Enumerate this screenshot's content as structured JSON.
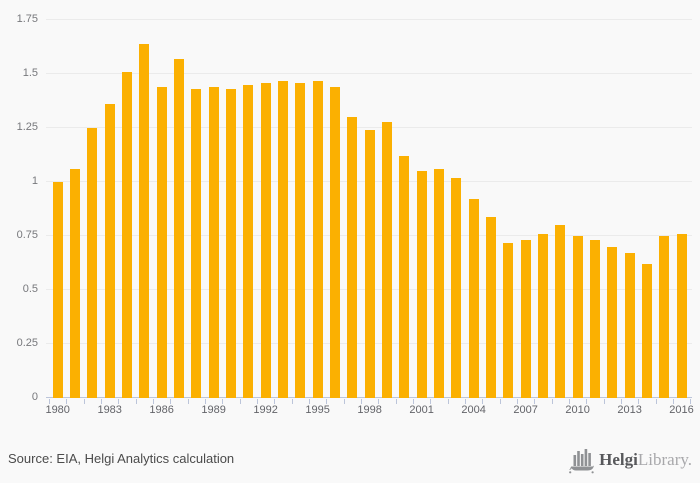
{
  "chart_data": {
    "type": "bar",
    "title": "",
    "xlabel": "",
    "ylabel": "",
    "x": [
      1980,
      1981,
      1982,
      1983,
      1984,
      1985,
      1986,
      1987,
      1988,
      1989,
      1990,
      1991,
      1992,
      1993,
      1994,
      1995,
      1996,
      1997,
      1998,
      1999,
      2000,
      2001,
      2002,
      2003,
      2004,
      2005,
      2006,
      2007,
      2008,
      2009,
      2010,
      2011,
      2012,
      2013,
      2014,
      2015,
      2016
    ],
    "values": [
      1.0,
      1.06,
      1.25,
      1.36,
      1.51,
      1.64,
      1.44,
      1.57,
      1.43,
      1.44,
      1.43,
      1.45,
      1.46,
      1.47,
      1.46,
      1.47,
      1.44,
      1.3,
      1.24,
      1.28,
      1.12,
      1.05,
      1.06,
      1.02,
      0.92,
      0.84,
      0.72,
      0.73,
      0.76,
      0.8,
      0.75,
      0.73,
      0.7,
      0.67,
      0.62,
      0.75,
      0.76
    ],
    "ylim": [
      0,
      1.75
    ],
    "yticks": [
      0,
      0.25,
      0.5,
      0.75,
      1,
      1.25,
      1.5,
      1.75
    ],
    "ytick_labels": [
      "0",
      "0.25",
      "0.5",
      "0.75",
      "1",
      "1.25",
      "1.5",
      "1.75"
    ],
    "xtick_labels": [
      "1980",
      "1983",
      "1986",
      "1989",
      "1992",
      "1995",
      "1998",
      "2001",
      "2004",
      "2007",
      "2010",
      "2013",
      "2016"
    ],
    "x_label_interval_years": 3,
    "grid": true,
    "legend": "none"
  },
  "colors": {
    "bar": "#FBB001",
    "background": "#f9f9f9",
    "gridline": "#ebebeb",
    "axis": "#bcc5da",
    "y_label": "#77787c",
    "x_label": "#636469",
    "source_text": "#4b4b4b",
    "logo_dark": "#57585b",
    "logo_light": "#a8a8ab",
    "logo_icon": "#8f9194"
  },
  "footer": {
    "source_text": "Source: EIA, Helgi Analytics calculation",
    "logo": {
      "brand_bold": "Helgi",
      "brand_light": "Library.",
      "icon": "bar-chart-boat-icon"
    }
  }
}
